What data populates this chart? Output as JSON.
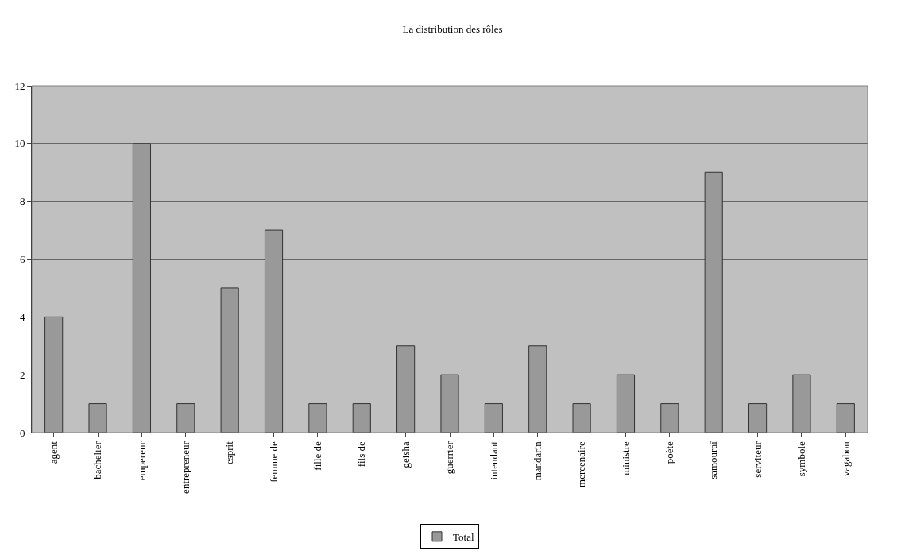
{
  "chart_data": {
    "type": "bar",
    "title": "La distribution des rôles",
    "categories": [
      "agent",
      "bachelier",
      "empereur",
      "entrepreneur",
      "esprit",
      "femme de",
      "fille de",
      "fils de",
      "geisha",
      "guerrier",
      "intendant",
      "mandarin",
      "mercenaire",
      "ministre",
      "poète",
      "samouraï",
      "serviteur",
      "symbole",
      "vagabon"
    ],
    "series": [
      {
        "name": "Total",
        "color": "#999999",
        "values": [
          4,
          1,
          10,
          1,
          5,
          7,
          1,
          1,
          3,
          2,
          1,
          3,
          1,
          2,
          1,
          9,
          1,
          2,
          1
        ]
      }
    ],
    "ylim": [
      0,
      12
    ],
    "yticks": [
      0,
      2,
      4,
      6,
      8,
      10,
      12
    ],
    "grid": "y",
    "legend": "bottom"
  }
}
